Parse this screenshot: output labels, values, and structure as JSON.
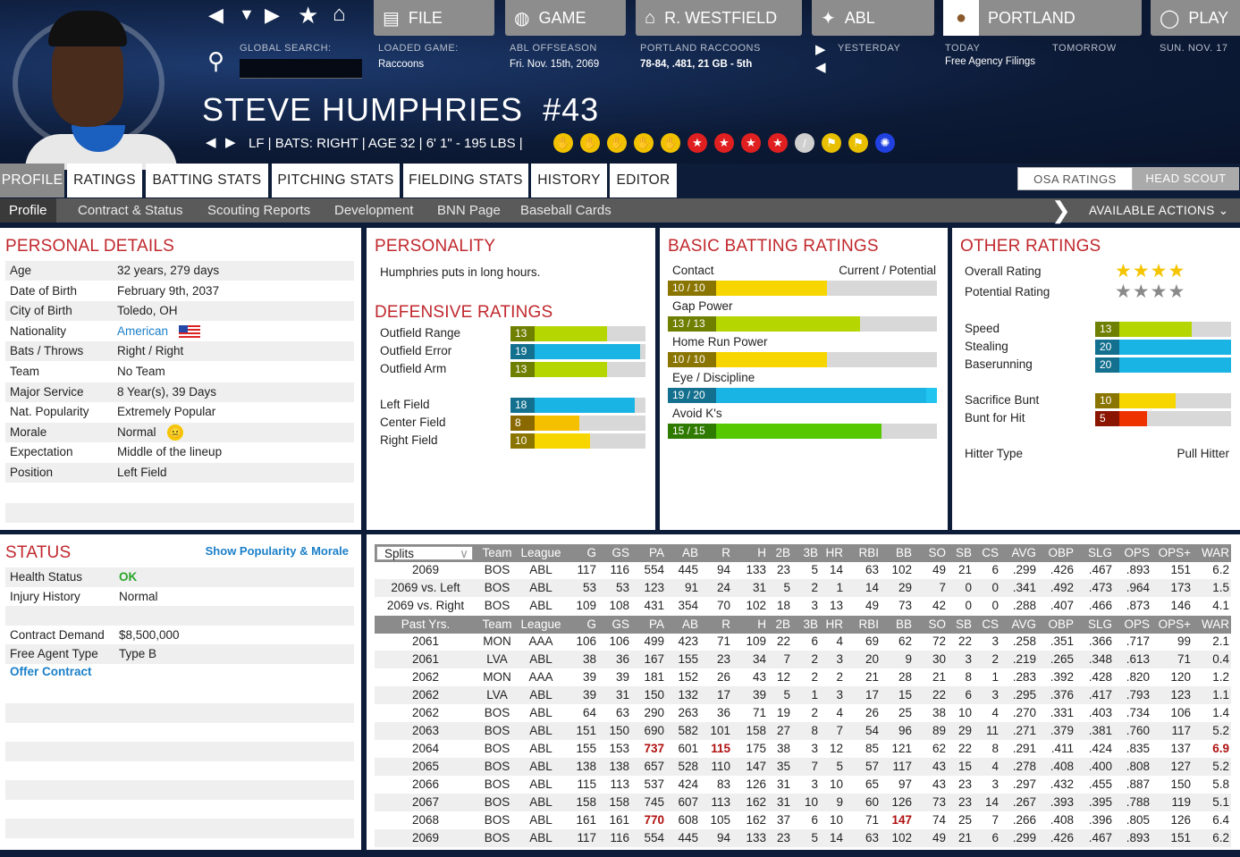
{
  "header": {
    "nav_buttons": [
      {
        "label": "FILE",
        "icon": "file-icon"
      },
      {
        "label": "GAME",
        "icon": "globe-icon"
      },
      {
        "label": "R. WESTFIELD",
        "icon": "home-icon"
      },
      {
        "label": "ABL",
        "icon": "league-logo-icon"
      },
      {
        "label": "PORTLAND",
        "icon": "raccoon-logo-icon"
      },
      {
        "label": "PLAY",
        "icon": "baseball-icon"
      }
    ],
    "global_search_label": "GLOBAL SEARCH:",
    "global_search_value": "",
    "loaded_game_label": "LOADED GAME:",
    "loaded_game_value": "Raccoons",
    "season_label": "ABL OFFSEASON",
    "date": "Fri. Nov. 15th, 2069",
    "team_label": "PORTLAND RACCOONS",
    "team_record": "78-84, .481, 21 GB - 5th",
    "yesterday": "YESTERDAY",
    "today": "TODAY",
    "tomorrow": "TOMORROW",
    "today_event": "Free Agency Filings",
    "next_date": "SUN. NOV. 17"
  },
  "player": {
    "name": "STEVE HUMPHRIES",
    "number": "#43",
    "info": "LF | BATS: RIGHT  |  AGE 32  |  6' 1\" - 195 LBS  |",
    "badges": [
      "glove",
      "glove",
      "glove",
      "glove",
      "glove",
      "star",
      "star",
      "star",
      "star",
      "bat",
      "trophy",
      "trophy",
      "target"
    ]
  },
  "tabs": [
    "PROFILE",
    "RATINGS",
    "BATTING STATS",
    "PITCHING STATS",
    "FIELDING STATS",
    "HISTORY",
    "EDITOR"
  ],
  "active_tab": "PROFILE",
  "rating_toggle": [
    "OSA RATINGS",
    "HEAD SCOUT"
  ],
  "subnav": [
    "Profile",
    "Contract & Status",
    "Scouting Reports",
    "Development",
    "BNN Page",
    "Baseball Cards"
  ],
  "available_actions": "AVAILABLE ACTIONS",
  "personal": {
    "title": "PERSONAL DETAILS",
    "rows": [
      [
        "Age",
        "32 years, 279 days"
      ],
      [
        "Date of Birth",
        "February 9th, 2037"
      ],
      [
        "City of Birth",
        "Toledo, OH"
      ],
      [
        "Nationality",
        "American"
      ],
      [
        "Bats / Throws",
        "Right / Right"
      ],
      [
        "Team",
        "No Team"
      ],
      [
        "Major Service",
        "8 Year(s), 39 Days"
      ],
      [
        "Nat. Popularity",
        "Extremely Popular"
      ],
      [
        "Morale",
        "Normal"
      ],
      [
        "Expectation",
        "Middle of the lineup"
      ],
      [
        "Position",
        "Left Field"
      ]
    ]
  },
  "personality": {
    "title": "PERSONALITY",
    "text": "Humphries puts in long hours."
  },
  "defense": {
    "title": "DEFENSIVE RATINGS",
    "rows": [
      [
        "Outfield Range",
        13
      ],
      [
        "Outfield Error",
        19
      ],
      [
        "Outfield Arm",
        13
      ],
      null,
      [
        "Left Field",
        18
      ],
      [
        "Center Field",
        8
      ],
      [
        "Right Field",
        10
      ]
    ]
  },
  "batting": {
    "title": "BASIC BATTING RATINGS",
    "col_label": "Current / Potential",
    "rows": [
      [
        "Contact",
        10,
        10
      ],
      [
        "Gap Power",
        13,
        13
      ],
      [
        "Home Run Power",
        10,
        10
      ],
      [
        "Eye / Discipline",
        19,
        20
      ],
      [
        "Avoid K's",
        15,
        15
      ]
    ]
  },
  "other": {
    "title": "OTHER RATINGS",
    "overall_label": "Overall Rating",
    "overall_stars": 4,
    "potential_label": "Potential Rating",
    "potential_stars": 4,
    "rows": [
      [
        "Speed",
        13
      ],
      [
        "Stealing",
        20
      ],
      [
        "Baserunning",
        20
      ],
      null,
      [
        "Sacrifice Bunt",
        10
      ],
      [
        "Bunt for Hit",
        5
      ]
    ],
    "hitter_type_label": "Hitter Type",
    "hitter_type": "Pull Hitter"
  },
  "status": {
    "title": "STATUS",
    "link": "Show Popularity & Morale",
    "rows": [
      [
        "Health Status",
        "OK"
      ],
      [
        "Injury History",
        "Normal"
      ],
      null,
      [
        "Contract Demand",
        "$8,500,000"
      ],
      [
        "Free Agent Type",
        "Type B"
      ]
    ],
    "offer": "Offer Contract"
  },
  "stats": {
    "splits_select": "Splits",
    "columns": [
      "Team",
      "League",
      "G",
      "GS",
      "PA",
      "AB",
      "R",
      "H",
      "2B",
      "3B",
      "HR",
      "RBI",
      "BB",
      "SO",
      "SB",
      "CS",
      "AVG",
      "OBP",
      "SLG",
      "OPS",
      "OPS+",
      "WAR"
    ],
    "past_label": "Past Yrs.",
    "splits": [
      [
        "2069",
        "BOS",
        "ABL",
        "117",
        "116",
        "554",
        "445",
        "94",
        "133",
        "23",
        "5",
        "14",
        "63",
        "102",
        "49",
        "21",
        "6",
        ".299",
        ".426",
        ".467",
        ".893",
        "151",
        "6.2"
      ],
      [
        "2069 vs. Left",
        "BOS",
        "ABL",
        "53",
        "53",
        "123",
        "91",
        "24",
        "31",
        "5",
        "2",
        "1",
        "14",
        "29",
        "7",
        "0",
        "0",
        ".341",
        ".492",
        ".473",
        ".964",
        "173",
        "1.5"
      ],
      [
        "2069 vs. Right",
        "BOS",
        "ABL",
        "109",
        "108",
        "431",
        "354",
        "70",
        "102",
        "18",
        "3",
        "13",
        "49",
        "73",
        "42",
        "0",
        "0",
        ".288",
        ".407",
        ".466",
        ".873",
        "146",
        "4.1"
      ]
    ],
    "past": [
      [
        "2061",
        "MON",
        "AAA",
        "106",
        "106",
        "499",
        "423",
        "71",
        "109",
        "22",
        "6",
        "4",
        "69",
        "62",
        "72",
        "22",
        "3",
        ".258",
        ".351",
        ".366",
        ".717",
        "99",
        "2.1"
      ],
      [
        "2061",
        "LVA",
        "ABL",
        "38",
        "36",
        "167",
        "155",
        "23",
        "34",
        "7",
        "2",
        "3",
        "20",
        "9",
        "30",
        "3",
        "2",
        ".219",
        ".265",
        ".348",
        ".613",
        "71",
        "0.4"
      ],
      [
        "2062",
        "MON",
        "AAA",
        "39",
        "39",
        "181",
        "152",
        "26",
        "43",
        "12",
        "2",
        "2",
        "21",
        "28",
        "21",
        "8",
        "1",
        ".283",
        ".392",
        ".428",
        ".820",
        "120",
        "1.2"
      ],
      [
        "2062",
        "LVA",
        "ABL",
        "39",
        "31",
        "150",
        "132",
        "17",
        "39",
        "5",
        "1",
        "3",
        "17",
        "15",
        "22",
        "6",
        "3",
        ".295",
        ".376",
        ".417",
        ".793",
        "123",
        "1.1"
      ],
      [
        "2062",
        "BOS",
        "ABL",
        "64",
        "63",
        "290",
        "263",
        "36",
        "71",
        "19",
        "2",
        "4",
        "26",
        "25",
        "38",
        "10",
        "4",
        ".270",
        ".331",
        ".403",
        ".734",
        "106",
        "1.4"
      ],
      [
        "2063",
        "BOS",
        "ABL",
        "151",
        "150",
        "690",
        "582",
        "101",
        "158",
        "27",
        "8",
        "7",
        "54",
        "96",
        "89",
        "29",
        "11",
        ".271",
        ".379",
        ".381",
        ".760",
        "117",
        "5.2"
      ],
      [
        "2064",
        "BOS",
        "ABL",
        "155",
        "153",
        "737",
        "601",
        "115",
        "175",
        "38",
        "3",
        "12",
        "85",
        "121",
        "62",
        "22",
        "8",
        ".291",
        ".411",
        ".424",
        ".835",
        "137",
        "6.9"
      ],
      [
        "2065",
        "BOS",
        "ABL",
        "138",
        "138",
        "657",
        "528",
        "110",
        "147",
        "35",
        "7",
        "5",
        "57",
        "117",
        "43",
        "15",
        "4",
        ".278",
        ".408",
        ".400",
        ".808",
        "127",
        "5.2"
      ],
      [
        "2066",
        "BOS",
        "ABL",
        "115",
        "113",
        "537",
        "424",
        "83",
        "126",
        "31",
        "3",
        "10",
        "65",
        "97",
        "43",
        "23",
        "3",
        ".297",
        ".432",
        ".455",
        ".887",
        "150",
        "5.8"
      ],
      [
        "2067",
        "BOS",
        "ABL",
        "158",
        "158",
        "745",
        "607",
        "113",
        "162",
        "31",
        "10",
        "9",
        "60",
        "126",
        "73",
        "23",
        "14",
        ".267",
        ".393",
        ".395",
        ".788",
        "119",
        "5.1"
      ],
      [
        "2068",
        "BOS",
        "ABL",
        "161",
        "161",
        "770",
        "608",
        "105",
        "162",
        "37",
        "6",
        "10",
        "71",
        "147",
        "74",
        "25",
        "7",
        ".266",
        ".408",
        ".396",
        ".805",
        "126",
        "6.4"
      ],
      [
        "2069",
        "BOS",
        "ABL",
        "117",
        "116",
        "554",
        "445",
        "94",
        "133",
        "23",
        "5",
        "14",
        "63",
        "102",
        "49",
        "21",
        "6",
        ".299",
        ".426",
        ".467",
        ".893",
        "151",
        "6.2"
      ]
    ],
    "league_leader_cells": {
      "2064": [
        "PA",
        "R",
        "WAR"
      ],
      "2068": [
        "PA",
        "BB"
      ]
    }
  },
  "colors": {
    "title_red": "#c0282d",
    "leader_red": "#b01010",
    "link_blue": "#1a7fc8",
    "ok_green": "#2aa52a"
  }
}
